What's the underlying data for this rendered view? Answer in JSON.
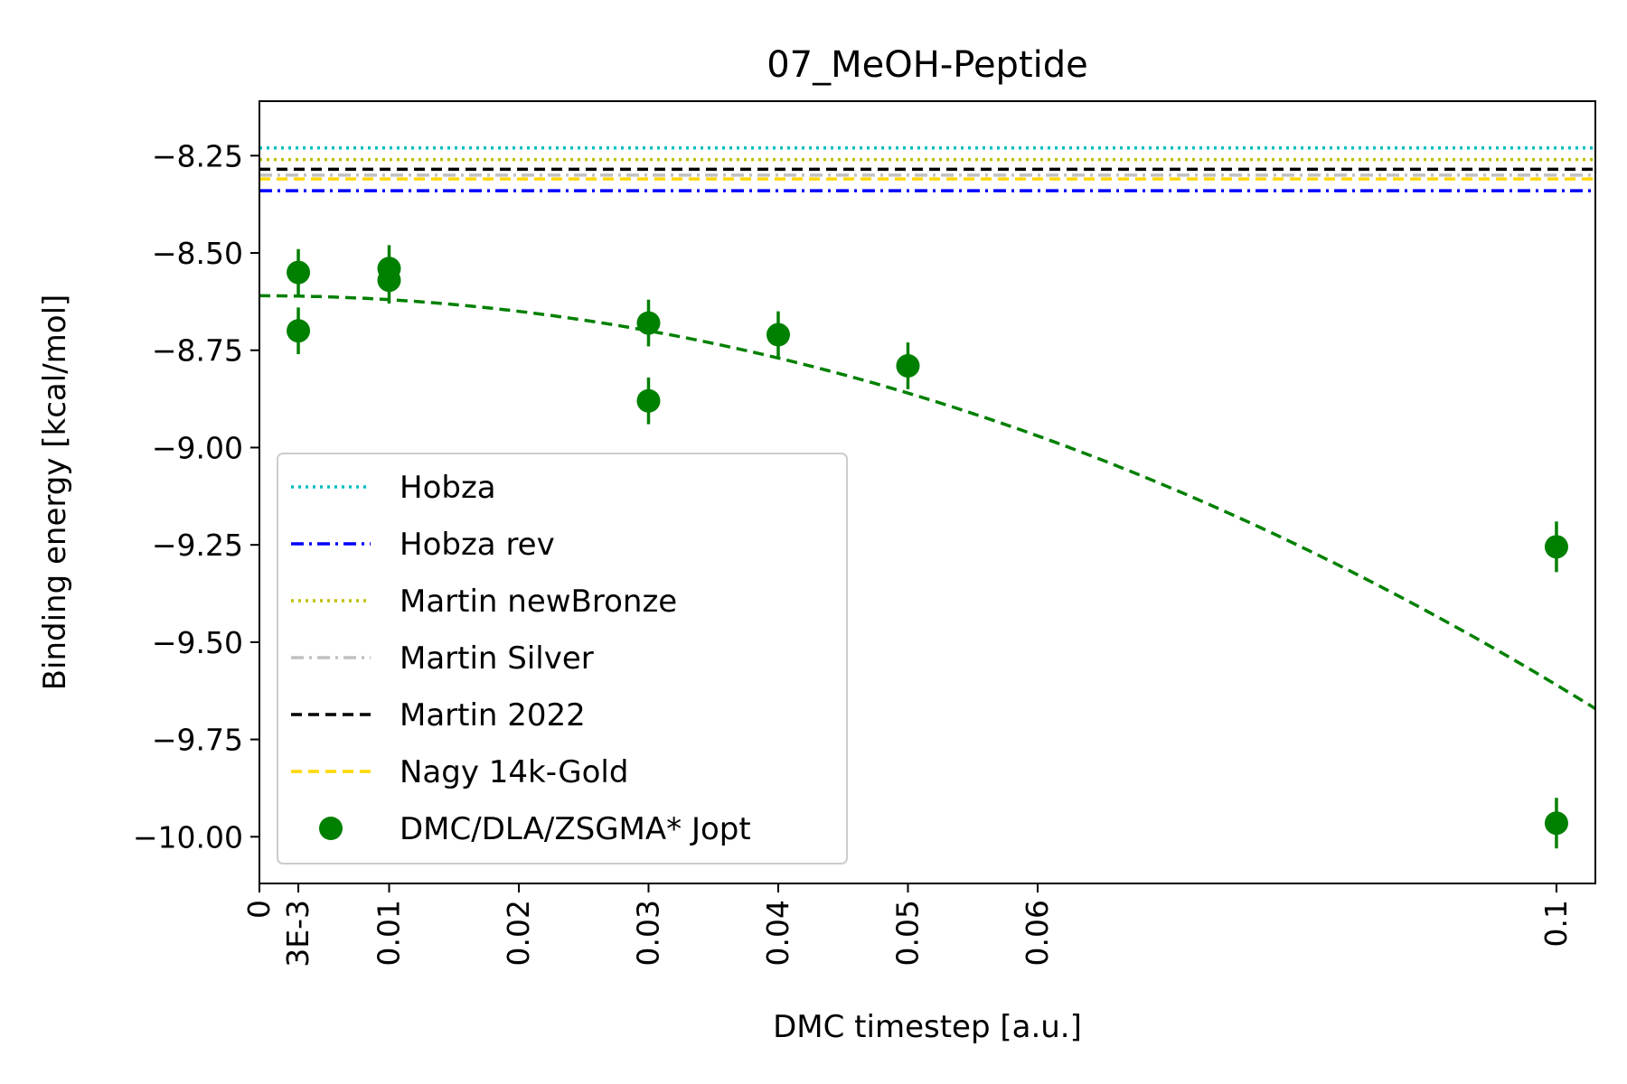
{
  "chart_data": {
    "type": "scatter",
    "title": "07_MeOH-Peptide",
    "xlabel": "DMC timestep [a.u.]",
    "ylabel": "Binding energy [kcal/mol]",
    "xlim": [
      0,
      0.103
    ],
    "ylim": [
      -10.12,
      -8.11
    ],
    "x_ticks": [
      {
        "value": 0,
        "label": "0"
      },
      {
        "value": 0.003,
        "label": "3E-3"
      },
      {
        "value": 0.01,
        "label": "0.01"
      },
      {
        "value": 0.02,
        "label": "0.02"
      },
      {
        "value": 0.03,
        "label": "0.03"
      },
      {
        "value": 0.04,
        "label": "0.04"
      },
      {
        "value": 0.05,
        "label": "0.05"
      },
      {
        "value": 0.06,
        "label": "0.06"
      },
      {
        "value": 0.1,
        "label": "0.1"
      }
    ],
    "y_ticks": [
      {
        "value": -8.25,
        "label": "−8.25"
      },
      {
        "value": -8.5,
        "label": "−8.50"
      },
      {
        "value": -8.75,
        "label": "−8.75"
      },
      {
        "value": -9.0,
        "label": "−9.00"
      },
      {
        "value": -9.25,
        "label": "−9.25"
      },
      {
        "value": -9.5,
        "label": "−9.50"
      },
      {
        "value": -9.75,
        "label": "−9.75"
      },
      {
        "value": -10.0,
        "label": "−10.00"
      }
    ],
    "reference_lines": [
      {
        "name": "Hobza",
        "value": -8.23,
        "color": "#00bfbf",
        "style": "dotted"
      },
      {
        "name": "Hobza rev",
        "value": -8.34,
        "color": "#0000ff",
        "style": "dashdot"
      },
      {
        "name": "Martin newBronze",
        "value": -8.26,
        "color": "#bfbf00",
        "style": "dotted"
      },
      {
        "name": "Martin Silver",
        "value": -8.3,
        "color": "#c0c0c0",
        "style": "dashdot"
      },
      {
        "name": "Martin 2022",
        "value": -8.285,
        "color": "#000000",
        "style": "dashed"
      },
      {
        "name": "Nagy 14k-Gold",
        "value": -8.31,
        "color": "#ffd700",
        "style": "dashed"
      }
    ],
    "series": [
      {
        "name": "DMC/DLA/ZSGMA* Jopt",
        "color": "#008000",
        "points": [
          {
            "x": 0.003,
            "y": -8.55,
            "err": 0.06
          },
          {
            "x": 0.003,
            "y": -8.7,
            "err": 0.06
          },
          {
            "x": 0.01,
            "y": -8.54,
            "err": 0.06
          },
          {
            "x": 0.01,
            "y": -8.57,
            "err": 0.06
          },
          {
            "x": 0.03,
            "y": -8.68,
            "err": 0.06
          },
          {
            "x": 0.03,
            "y": -8.88,
            "err": 0.06
          },
          {
            "x": 0.04,
            "y": -8.71,
            "err": 0.06
          },
          {
            "x": 0.05,
            "y": -8.79,
            "err": 0.06
          },
          {
            "x": 0.1,
            "y": -9.255,
            "err": 0.065
          },
          {
            "x": 0.1,
            "y": -9.965,
            "err": 0.065
          }
        ]
      }
    ],
    "fit": {
      "color": "#008000",
      "style": "dashed",
      "a": -8.61,
      "b": 0.0,
      "c": -100.0
    },
    "legend": {
      "position": "lower-left",
      "entries": [
        "Hobza",
        "Hobza rev",
        "Martin newBronze",
        "Martin Silver",
        "Martin 2022",
        "Nagy 14k-Gold",
        "DMC/DLA/ZSGMA* Jopt"
      ]
    },
    "grid": false
  }
}
